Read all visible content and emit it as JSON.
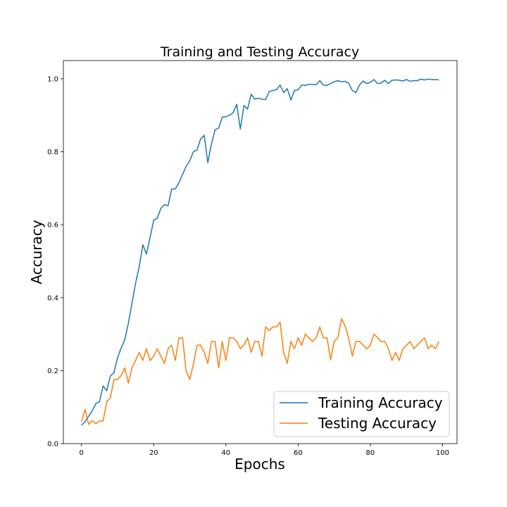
{
  "chart_data": {
    "type": "line",
    "title": "Training and Testing Accuracy",
    "xlabel": "Epochs",
    "ylabel": "Accuracy",
    "xlim": [
      -5,
      104
    ],
    "ylim": [
      0,
      1.05
    ],
    "xticks": [
      0,
      20,
      40,
      60,
      80,
      100
    ],
    "yticks": [
      0.0,
      0.2,
      0.4,
      0.6,
      0.8,
      1.0
    ],
    "xtick_labels": [
      "0",
      "20",
      "40",
      "60",
      "80",
      "100"
    ],
    "ytick_labels": [
      "0.0",
      "0.2",
      "0.4",
      "0.6",
      "0.8",
      "1.0"
    ],
    "grid": false,
    "legend_position": "lower-right",
    "x": [
      0,
      1,
      2,
      3,
      4,
      5,
      6,
      7,
      8,
      9,
      10,
      11,
      12,
      13,
      14,
      15,
      16,
      17,
      18,
      19,
      20,
      21,
      22,
      23,
      24,
      25,
      26,
      27,
      28,
      29,
      30,
      31,
      32,
      33,
      34,
      35,
      36,
      37,
      38,
      39,
      40,
      41,
      42,
      43,
      44,
      45,
      46,
      47,
      48,
      49,
      50,
      51,
      52,
      53,
      54,
      55,
      56,
      57,
      58,
      59,
      60,
      61,
      62,
      63,
      64,
      65,
      66,
      67,
      68,
      69,
      70,
      71,
      72,
      73,
      74,
      75,
      76,
      77,
      78,
      79,
      80,
      81,
      82,
      83,
      84,
      85,
      86,
      87,
      88,
      89,
      90,
      91,
      92,
      93,
      94,
      95,
      96,
      97,
      98,
      99
    ],
    "series": [
      {
        "name": "Training Accuracy",
        "color": "#1f77b4",
        "values": [
          0.05,
          0.06,
          0.075,
          0.09,
          0.11,
          0.115,
          0.158,
          0.145,
          0.185,
          0.195,
          0.235,
          0.262,
          0.285,
          0.33,
          0.385,
          0.44,
          0.485,
          0.545,
          0.52,
          0.565,
          0.612,
          0.618,
          0.645,
          0.655,
          0.652,
          0.698,
          0.698,
          0.715,
          0.738,
          0.76,
          0.775,
          0.8,
          0.805,
          0.835,
          0.845,
          0.77,
          0.822,
          0.86,
          0.865,
          0.895,
          0.896,
          0.9,
          0.907,
          0.93,
          0.862,
          0.927,
          0.917,
          0.958,
          0.944,
          0.947,
          0.944,
          0.943,
          0.965,
          0.968,
          0.97,
          0.983,
          0.962,
          0.973,
          0.942,
          0.968,
          0.97,
          0.983,
          0.982,
          0.985,
          0.984,
          0.984,
          0.995,
          0.983,
          0.982,
          0.987,
          0.992,
          0.995,
          0.992,
          0.993,
          0.988,
          0.968,
          0.962,
          0.983,
          0.994,
          0.987,
          0.99,
          0.998,
          0.987,
          0.988,
          0.996,
          0.987,
          0.996,
          0.997,
          0.996,
          0.994,
          0.998,
          0.993,
          0.995,
          0.995,
          0.999,
          0.997,
          0.999,
          0.998,
          0.998,
          0.997
        ]
      },
      {
        "name": "Testing Accuracy",
        "color": "#ff7f0e",
        "values": [
          0.06,
          0.093,
          0.053,
          0.063,
          0.055,
          0.062,
          0.062,
          0.115,
          0.125,
          0.176,
          0.176,
          0.187,
          0.208,
          0.166,
          0.208,
          0.228,
          0.25,
          0.228,
          0.26,
          0.228,
          0.24,
          0.26,
          0.24,
          0.22,
          0.26,
          0.27,
          0.228,
          0.29,
          0.29,
          0.198,
          0.176,
          0.218,
          0.27,
          0.27,
          0.25,
          0.22,
          0.28,
          0.28,
          0.208,
          0.28,
          0.228,
          0.29,
          0.29,
          0.28,
          0.26,
          0.27,
          0.29,
          0.25,
          0.28,
          0.28,
          0.24,
          0.32,
          0.31,
          0.32,
          0.32,
          0.333,
          0.25,
          0.22,
          0.28,
          0.26,
          0.29,
          0.27,
          0.3,
          0.29,
          0.28,
          0.29,
          0.32,
          0.29,
          0.29,
          0.23,
          0.28,
          0.29,
          0.343,
          0.323,
          0.29,
          0.24,
          0.28,
          0.28,
          0.27,
          0.26,
          0.27,
          0.3,
          0.29,
          0.28,
          0.28,
          0.26,
          0.228,
          0.25,
          0.228,
          0.26,
          0.27,
          0.28,
          0.26,
          0.27,
          0.28,
          0.29,
          0.26,
          0.27,
          0.26,
          0.28
        ]
      }
    ]
  }
}
